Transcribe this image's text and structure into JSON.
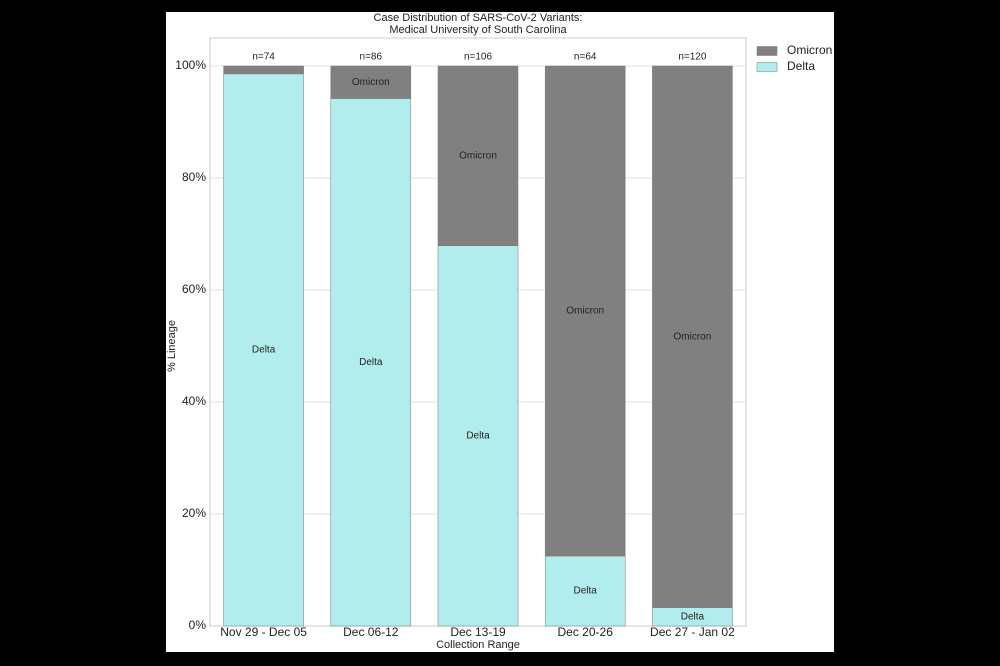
{
  "chart_data": {
    "type": "stacked_bar",
    "title": "Case Distribution of SARS-CoV-2 Variants:",
    "subtitle": "Medical University of South Carolina",
    "x_label": "Collection Range",
    "y_label": "% Lineage",
    "categories": [
      "Nov 29 - Dec 05",
      "Dec 06-12",
      "Dec 13-19",
      "Dec 20-26",
      "Dec 27 - Jan 02"
    ],
    "annotations": [
      "n=74",
      "n=86",
      "n=106",
      "n=64",
      "n=120"
    ],
    "series": [
      {
        "name": "Delta",
        "color": "#b2eded",
        "values": [
          98.6,
          94.2,
          67.9,
          12.5,
          3.3
        ]
      },
      {
        "name": "Omicron",
        "color": "#808080",
        "values": [
          1.4,
          5.8,
          32.1,
          87.5,
          96.7
        ]
      }
    ],
    "ylim": [
      0,
      105
    ],
    "yticks": [
      {
        "value": 0,
        "label": "0%"
      },
      {
        "value": 20,
        "label": "20%"
      },
      {
        "value": 40,
        "label": "40%"
      },
      {
        "value": 60,
        "label": "60%"
      },
      {
        "value": 80,
        "label": "80%"
      },
      {
        "value": 100,
        "label": "100%"
      }
    ],
    "grid": true,
    "legend": "outside-right"
  }
}
